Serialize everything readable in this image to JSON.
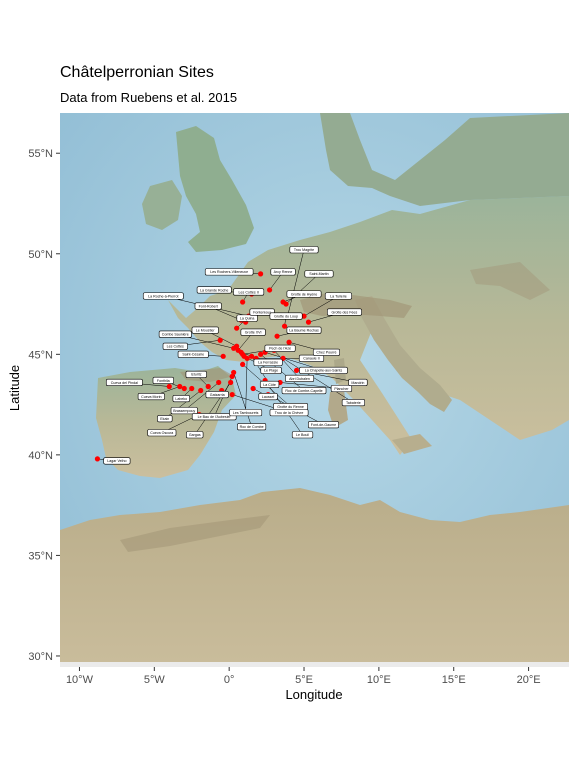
{
  "title": "Châtelperronian Sites",
  "subtitle": "Data from Ruebens et al. 2015",
  "colors": {
    "point": "#ff0000",
    "sea": "#9fc9de",
    "land": "#c4bc9a",
    "mountain": "#a89a76",
    "panel_strip": "#ebebeb",
    "label_fill": "#ffffff",
    "label_border": "#000000"
  },
  "chart_data": {
    "type": "scatter",
    "xlabel": "Longitude",
    "ylabel": "Latitude",
    "xlim": [
      -11.3,
      22.7
    ],
    "ylim": [
      29.7,
      57.0
    ],
    "x_ticks": [
      {
        "value": -10,
        "label": "10°W"
      },
      {
        "value": -5,
        "label": "5°W"
      },
      {
        "value": 0,
        "label": "0°"
      },
      {
        "value": 5,
        "label": "5°E"
      },
      {
        "value": 10,
        "label": "10°E"
      },
      {
        "value": 15,
        "label": "15°E"
      },
      {
        "value": 20,
        "label": "20°E"
      }
    ],
    "y_ticks": [
      {
        "value": 30,
        "label": "30°N"
      },
      {
        "value": 35,
        "label": "35°N"
      },
      {
        "value": 40,
        "label": "40°N"
      },
      {
        "value": 45,
        "label": "45°N"
      },
      {
        "value": 50,
        "label": "50°N"
      },
      {
        "value": 55,
        "label": "55°N"
      }
    ],
    "sites": [
      {
        "x": -8.8,
        "y": 39.8,
        "label": "Lagar Velho",
        "lx": -7.5,
        "ly": 39.7
      },
      {
        "x": -4.0,
        "y": 43.4,
        "label": "Cueva del Pindal",
        "lx": -7.0,
        "ly": 43.6
      },
      {
        "x": -3.3,
        "y": 43.4,
        "label": "Cueva Morin",
        "lx": -5.2,
        "ly": 42.9
      },
      {
        "x": -3.0,
        "y": 43.3,
        "label": "Fonthila",
        "lx": -4.4,
        "ly": 43.7
      },
      {
        "x": -2.5,
        "y": 43.3,
        "label": "Labeko",
        "lx": -3.2,
        "ly": 42.8
      },
      {
        "x": -1.9,
        "y": 43.2,
        "label": "Ekain",
        "lx": -4.3,
        "ly": 41.8
      },
      {
        "x": -1.4,
        "y": 43.4,
        "label": "Isturitz",
        "lx": -2.2,
        "ly": 44.0
      },
      {
        "x": -0.5,
        "y": 43.2,
        "label": "Gatzarria",
        "lx": -0.8,
        "ly": 43.0
      },
      {
        "x": -0.7,
        "y": 43.6,
        "label": "Brassempouy",
        "lx": -3.0,
        "ly": 42.2
      },
      {
        "x": 0.1,
        "y": 43.6,
        "label": "Gargas",
        "lx": -2.3,
        "ly": 41.0
      },
      {
        "x": 0.2,
        "y": 43.9,
        "label": "Le Bau de l'Aubesier",
        "lx": -1.0,
        "ly": 41.9
      },
      {
        "x": 0.3,
        "y": 44.1,
        "label": "Roc de Combe",
        "lx": 1.5,
        "ly": 41.4
      },
      {
        "x": -0.4,
        "y": 44.9,
        "label": "Saint-Césaire",
        "lx": -2.4,
        "ly": 45.0
      },
      {
        "x": -0.6,
        "y": 45.7,
        "label": "Les Cottés",
        "lx": -3.6,
        "ly": 45.4
      },
      {
        "x": 0.3,
        "y": 45.3,
        "label": "Combe Saunière",
        "lx": -3.6,
        "ly": 46.0
      },
      {
        "x": 0.5,
        "y": 45.4,
        "label": "Le Moustier",
        "lx": -1.6,
        "ly": 46.2
      },
      {
        "x": 0.6,
        "y": 45.2,
        "label": "Grotte XVI",
        "lx": 1.6,
        "ly": 46.1
      },
      {
        "x": 0.8,
        "y": 45.1,
        "label": "La Ferrassie",
        "lx": 2.6,
        "ly": 44.6
      },
      {
        "x": 0.9,
        "y": 45.0,
        "label": "Pech de l'Azé",
        "lx": 3.4,
        "ly": 45.3
      },
      {
        "x": 1.0,
        "y": 44.9,
        "label": "Le Piage",
        "lx": 2.8,
        "ly": 44.2
      },
      {
        "x": 1.2,
        "y": 44.8,
        "label": "Les Tambourets",
        "lx": 1.1,
        "ly": 42.1
      },
      {
        "x": 0.9,
        "y": 44.5,
        "label": "Grotte du Renne",
        "lx": 4.1,
        "ly": 42.4
      },
      {
        "x": 1.5,
        "y": 44.9,
        "label": "La Côte",
        "lx": 2.7,
        "ly": 43.5
      },
      {
        "x": 1.8,
        "y": 44.8,
        "label": "Canaule II",
        "lx": 5.5,
        "ly": 44.8
      },
      {
        "x": 2.1,
        "y": 45.0,
        "label": "Roc de Combe-Capelle",
        "lx": 5.0,
        "ly": 43.2
      },
      {
        "x": 2.4,
        "y": 45.1,
        "label": "La Chapelle-aux-Saints",
        "lx": 6.3,
        "ly": 44.2
      },
      {
        "x": 3.0,
        "y": 45.2,
        "label": "Abri Dubalen",
        "lx": 4.7,
        "ly": 43.8
      },
      {
        "x": 1.6,
        "y": 43.3,
        "label": "Laussel",
        "lx": 2.6,
        "ly": 42.9
      },
      {
        "x": 0.2,
        "y": 43.0,
        "label": "Trou de la Chèvre",
        "lx": 4.0,
        "ly": 42.1
      },
      {
        "x": 2.6,
        "y": 43.0,
        "label": "Font-de-Gaume",
        "lx": 6.3,
        "ly": 41.5
      },
      {
        "x": 3.4,
        "y": 43.6,
        "label": "Plancher",
        "lx": 7.5,
        "ly": 43.3
      },
      {
        "x": 2.4,
        "y": 43.7,
        "label": "Le Bouil",
        "lx": 4.9,
        "ly": 41.0
      },
      {
        "x": 4.5,
        "y": 44.2,
        "label": "Mandrin",
        "lx": 8.6,
        "ly": 43.6
      },
      {
        "x": 3.6,
        "y": 44.8,
        "label": "Tabaterie",
        "lx": 8.3,
        "ly": 42.6
      },
      {
        "x": 0.5,
        "y": 46.3,
        "label": "La Quina",
        "lx": 1.2,
        "ly": 46.8
      },
      {
        "x": 0.8,
        "y": 46.7,
        "label": "Font-Robert",
        "lx": -1.4,
        "ly": 47.4
      },
      {
        "x": 1.1,
        "y": 46.6,
        "label": "Fontenioux",
        "lx": 2.2,
        "ly": 47.1
      },
      {
        "x": 1.3,
        "y": 46.9,
        "label": "La Roche-à-Pierrot",
        "lx": -4.4,
        "ly": 47.9
      },
      {
        "x": 0.9,
        "y": 47.6,
        "label": "Les Cottés II",
        "lx": 1.3,
        "ly": 48.1
      },
      {
        "x": 1.5,
        "y": 48.0,
        "label": "La Grande Roche",
        "lx": -1.0,
        "ly": 48.2
      },
      {
        "x": 2.7,
        "y": 48.2,
        "label": "Arcy Renne",
        "lx": 3.6,
        "ly": 49.1
      },
      {
        "x": 2.1,
        "y": 49.0,
        "label": "Les Rochers-Villeneuve",
        "lx": 0.0,
        "ly": 49.1
      },
      {
        "x": 3.6,
        "y": 47.6,
        "label": "Grotte de Hyène",
        "lx": 5.0,
        "ly": 48.0
      },
      {
        "x": 3.8,
        "y": 47.5,
        "label": "Saint-Martin",
        "lx": 6.0,
        "ly": 49.0
      },
      {
        "x": 3.9,
        "y": 46.9,
        "label": "Trou Magrite",
        "lx": 5.0,
        "ly": 50.2
      },
      {
        "x": 5.0,
        "y": 46.9,
        "label": "La Tuilerie",
        "lx": 7.3,
        "ly": 47.9
      },
      {
        "x": 3.7,
        "y": 46.4,
        "label": "Grotte du Loup",
        "lx": 3.8,
        "ly": 46.9
      },
      {
        "x": 5.3,
        "y": 46.6,
        "label": "Grotte des Fées",
        "lx": 7.7,
        "ly": 47.1
      },
      {
        "x": 3.2,
        "y": 45.9,
        "label": "La Baume Rochas",
        "lx": 5.0,
        "ly": 46.2
      },
      {
        "x": 4.0,
        "y": 45.6,
        "label": "Chez Pourré",
        "lx": 6.5,
        "ly": 45.1
      },
      {
        "x": -2.0,
        "y": 42.0,
        "label": "Cueva Oscura",
        "lx": -4.5,
        "ly": 41.1
      }
    ]
  }
}
